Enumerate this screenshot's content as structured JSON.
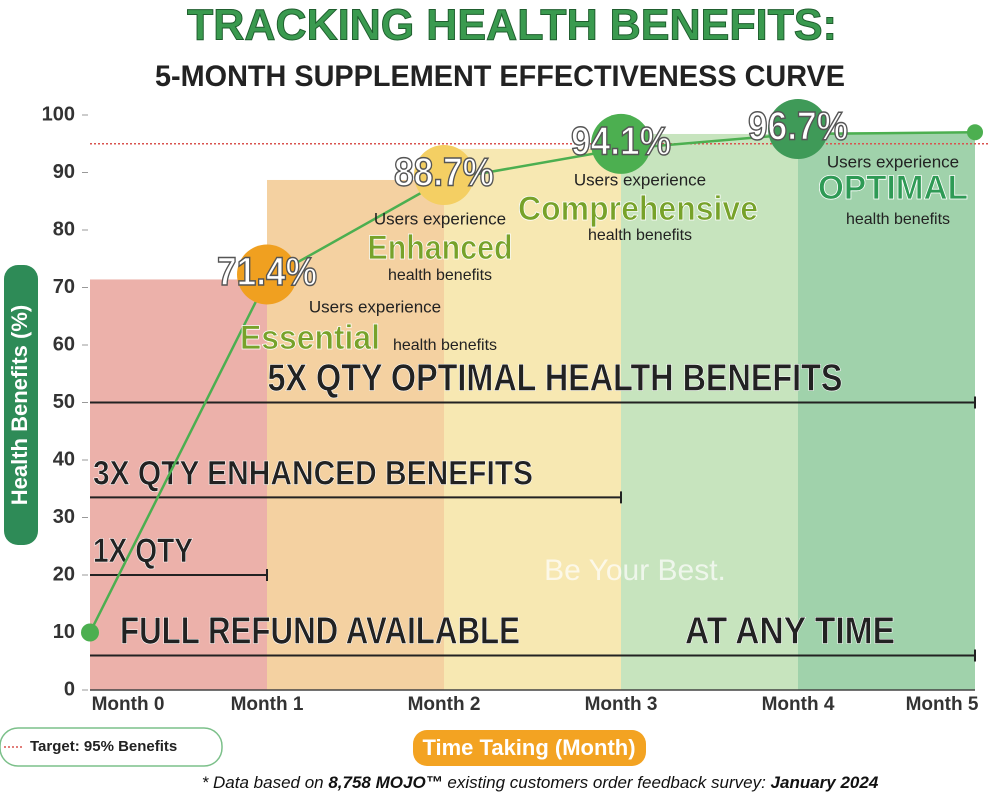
{
  "chart_data": {
    "type": "line",
    "title": "TRACKING HEALTH BENEFITS:",
    "subtitle": "5-MONTH SUPPLEMENT EFFECTIVENESS CURVE",
    "x_label": "Time Taking (Month)",
    "y_label": "Health Benefits (%)",
    "categories": [
      "Month 0",
      "Month 1",
      "Month 2",
      "Month 3",
      "Month 4",
      "Month 5"
    ],
    "series": [
      {
        "name": "Health Benefits",
        "color": "#4caf50",
        "values": [
          10,
          71.4,
          88.7,
          94.1,
          96.7,
          97
        ],
        "value_labels": [
          null,
          "71.4%",
          "88.7%",
          "94.1%",
          "96.7%",
          null
        ]
      }
    ],
    "band_colors": [
      "#e9a39b",
      "#f2c990",
      "#f6e4a4",
      "#bddfb3",
      "#8fca9c"
    ],
    "ylim": [
      0,
      100
    ],
    "yticks": [
      0,
      10,
      20,
      30,
      40,
      50,
      60,
      70,
      80,
      90,
      100
    ],
    "target": {
      "value": 95,
      "label": "Target: 95% Benefits",
      "color": "#d9534f"
    },
    "annotations": [
      {
        "pre": "Users experience",
        "keyword": "Essential",
        "post": "health benefits"
      },
      {
        "pre": "Users experience",
        "keyword": "Enhanced",
        "post": "health benefits"
      },
      {
        "pre": "Users experience",
        "keyword": "Comprehensive",
        "post": "health benefits"
      },
      {
        "pre": "Users experience",
        "keyword": "OPTIMAL",
        "post": "health benefits"
      }
    ],
    "tiers": [
      {
        "labels": [
          "FULL REFUND AVAILABLE",
          "AT ANY TIME"
        ],
        "y": 6,
        "x_end": 5
      },
      {
        "labels": [
          "1X QTY"
        ],
        "y": 20,
        "x_end": 1
      },
      {
        "labels": [
          "3X QTY ENHANCED BENEFITS"
        ],
        "y": 33.5,
        "x_end": 3
      },
      {
        "labels": [
          "5X QTY OPTIMAL HEALTH BENEFITS"
        ],
        "y": 50,
        "x_end": 5
      }
    ],
    "watermark": "Be Your Best.",
    "footnote": [
      "* Data based on ",
      "8,758 MOJO™",
      " existing customers order feedback survey: ",
      "January 2024"
    ]
  }
}
